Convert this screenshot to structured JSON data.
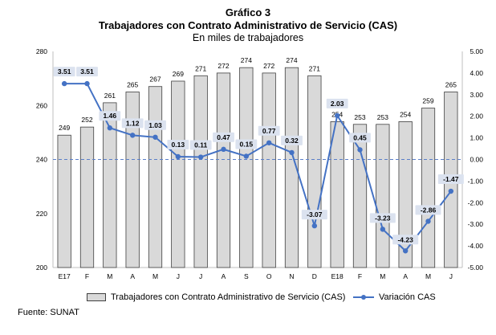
{
  "header": {
    "figure_number": "Gráfico 3",
    "title": "Trabajadores con Contrato Administrativo de Servicio (CAS)",
    "subtitle": "En miles de trabajadores"
  },
  "chart_data": {
    "type": "bar+line",
    "categories": [
      "E17",
      "F",
      "M",
      "A",
      "M",
      "J",
      "J",
      "A",
      "S",
      "O",
      "N",
      "D",
      "E18",
      "F",
      "M",
      "A",
      "M",
      "J"
    ],
    "series": [
      {
        "name": "Trabajadores con Contrato Administrativo de Servicio (CAS)",
        "type": "bar",
        "axis": "left",
        "values": [
          249,
          252,
          261,
          265,
          267,
          269,
          271,
          272,
          274,
          272,
          274,
          271,
          254,
          253,
          253,
          254,
          259,
          265
        ],
        "labels": [
          "249",
          "252",
          "261",
          "265",
          "267",
          "269",
          "271",
          "272",
          "274",
          "272",
          "274",
          "271",
          "254",
          "253",
          "253",
          "254",
          "259",
          "265"
        ]
      },
      {
        "name": "Variación CAS",
        "type": "line",
        "axis": "right",
        "values": [
          3.51,
          3.51,
          1.46,
          1.12,
          1.03,
          0.13,
          0.11,
          0.47,
          0.15,
          0.77,
          0.32,
          -3.07,
          2.03,
          0.45,
          -3.23,
          -4.23,
          -2.86,
          -1.47
        ],
        "labels": [
          "3.51",
          "3.51",
          "1.46",
          "1.12",
          "1.03",
          "0.13",
          "0.11",
          "0.47",
          "0.15",
          "0.77",
          "0.32",
          "-3.07",
          "2.03",
          "0.45",
          "-3.23",
          "-4.23",
          "-2.86",
          "-1.47"
        ]
      }
    ],
    "y_left": {
      "min": 200,
      "max": 280,
      "ticks": [
        "200",
        "220",
        "240",
        "260",
        "280"
      ]
    },
    "y_right": {
      "min": -5,
      "max": 5,
      "ticks": [
        "5.00",
        "4.00",
        "3.00",
        "2.00",
        "1.00",
        "0.00",
        "-1.00",
        "-2.00",
        "-3.00",
        "-4.00",
        "-5.00"
      ]
    },
    "reference_line": {
      "axis": "right",
      "value": 0,
      "style": "dashed"
    },
    "legend_position": "bottom",
    "colors": {
      "bar_fill": "#d9d9d9",
      "bar_stroke": "#404040",
      "line": "#4472c4",
      "label_box": "#dbe2ef",
      "grid_ref": "#5b7fc8"
    }
  },
  "footer": {
    "source": "Fuente: SUNAT"
  }
}
